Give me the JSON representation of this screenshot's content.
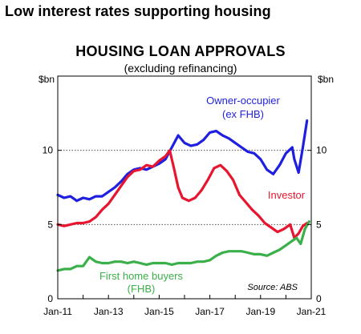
{
  "slide_title": "Low interest rates supporting housing",
  "chart_data": {
    "type": "line",
    "title": "HOUSING LOAN APPROVALS",
    "subtitle": "(excluding refinancing)",
    "y_unit_left": "$bn",
    "y_unit_right": "$bn",
    "ylim": [
      0,
      15
    ],
    "yticks": [
      "0",
      "5",
      "10"
    ],
    "xlim": [
      "2011-01",
      "2021-01"
    ],
    "xticks": [
      "Jan-11",
      "Jan-13",
      "Jan-15",
      "Jan-17",
      "Jan-19",
      "Jan-21"
    ],
    "grid": "dotted horizontal at 5 and 10",
    "source": "Source: ABS",
    "series": [
      {
        "name": "Owner-occupier (ex FHB)",
        "label_lines": [
          "Owner-occupier",
          "(ex FHB)"
        ],
        "color": "#1f1fe0",
        "x": [
          "2011-01",
          "2011-04",
          "2011-07",
          "2011-10",
          "2012-01",
          "2012-04",
          "2012-07",
          "2012-10",
          "2013-01",
          "2013-04",
          "2013-07",
          "2013-10",
          "2014-01",
          "2014-04",
          "2014-07",
          "2014-10",
          "2015-01",
          "2015-04",
          "2015-07",
          "2015-10",
          "2016-01",
          "2016-04",
          "2016-07",
          "2016-10",
          "2017-01",
          "2017-04",
          "2017-07",
          "2017-10",
          "2018-01",
          "2018-04",
          "2018-07",
          "2018-10",
          "2019-01",
          "2019-04",
          "2019-07",
          "2019-10",
          "2020-01",
          "2020-04",
          "2020-05",
          "2020-07",
          "2020-09",
          "2020-11"
        ],
        "values": [
          7.0,
          6.8,
          6.9,
          6.6,
          6.8,
          6.7,
          6.9,
          6.9,
          7.2,
          7.5,
          7.9,
          8.4,
          8.7,
          8.8,
          8.7,
          8.9,
          9.1,
          9.4,
          10.2,
          11.0,
          10.5,
          10.3,
          10.4,
          10.7,
          11.2,
          11.3,
          11.0,
          10.8,
          10.5,
          10.2,
          9.9,
          9.8,
          9.4,
          8.7,
          8.4,
          9.0,
          9.8,
          10.2,
          9.4,
          8.5,
          10.2,
          12.0
        ]
      },
      {
        "name": "Investor",
        "label_lines": [
          "Investor"
        ],
        "color": "#e8152e",
        "x": [
          "2011-01",
          "2011-04",
          "2011-07",
          "2011-10",
          "2012-01",
          "2012-04",
          "2012-07",
          "2012-10",
          "2013-01",
          "2013-04",
          "2013-07",
          "2013-10",
          "2014-01",
          "2014-04",
          "2014-07",
          "2014-10",
          "2015-01",
          "2015-04",
          "2015-06",
          "2015-08",
          "2015-10",
          "2015-12",
          "2016-03",
          "2016-06",
          "2016-09",
          "2016-12",
          "2017-03",
          "2017-06",
          "2017-09",
          "2017-12",
          "2018-03",
          "2018-06",
          "2018-09",
          "2018-12",
          "2019-03",
          "2019-06",
          "2019-09",
          "2019-12",
          "2020-03",
          "2020-05",
          "2020-07",
          "2020-09",
          "2020-11"
        ],
        "values": [
          5.0,
          4.9,
          5.0,
          5.1,
          5.1,
          5.2,
          5.5,
          6.0,
          6.4,
          7.0,
          7.6,
          8.2,
          8.6,
          8.7,
          9.0,
          8.9,
          9.3,
          9.6,
          10.0,
          8.8,
          7.5,
          6.8,
          6.6,
          6.8,
          7.3,
          8.0,
          8.8,
          9.0,
          8.6,
          8.0,
          7.0,
          6.5,
          6.0,
          5.6,
          5.1,
          4.8,
          4.5,
          4.7,
          5.0,
          4.1,
          4.4,
          4.9,
          5.1
        ]
      },
      {
        "name": "First home buyers (FHB)",
        "label_lines": [
          "First home  buyers",
          "(FHB)"
        ],
        "color": "#3bb04a",
        "x": [
          "2011-01",
          "2011-04",
          "2011-07",
          "2011-10",
          "2012-01",
          "2012-04",
          "2012-07",
          "2012-10",
          "2013-01",
          "2013-04",
          "2013-07",
          "2013-10",
          "2014-01",
          "2014-04",
          "2014-07",
          "2014-10",
          "2015-01",
          "2015-04",
          "2015-07",
          "2015-10",
          "2016-01",
          "2016-04",
          "2016-07",
          "2016-10",
          "2017-01",
          "2017-04",
          "2017-07",
          "2017-10",
          "2018-01",
          "2018-04",
          "2018-07",
          "2018-10",
          "2019-01",
          "2019-04",
          "2019-07",
          "2019-10",
          "2020-01",
          "2020-04",
          "2020-06",
          "2020-08",
          "2020-10",
          "2020-12"
        ],
        "values": [
          1.9,
          2.0,
          2.0,
          2.2,
          2.2,
          2.8,
          2.5,
          2.4,
          2.4,
          2.5,
          2.5,
          2.4,
          2.5,
          2.4,
          2.3,
          2.4,
          2.4,
          2.4,
          2.3,
          2.4,
          2.4,
          2.4,
          2.5,
          2.5,
          2.6,
          2.9,
          3.1,
          3.2,
          3.2,
          3.2,
          3.1,
          3.0,
          3.0,
          2.9,
          3.1,
          3.3,
          3.6,
          3.9,
          4.1,
          3.7,
          4.7,
          5.2
        ]
      }
    ]
  }
}
